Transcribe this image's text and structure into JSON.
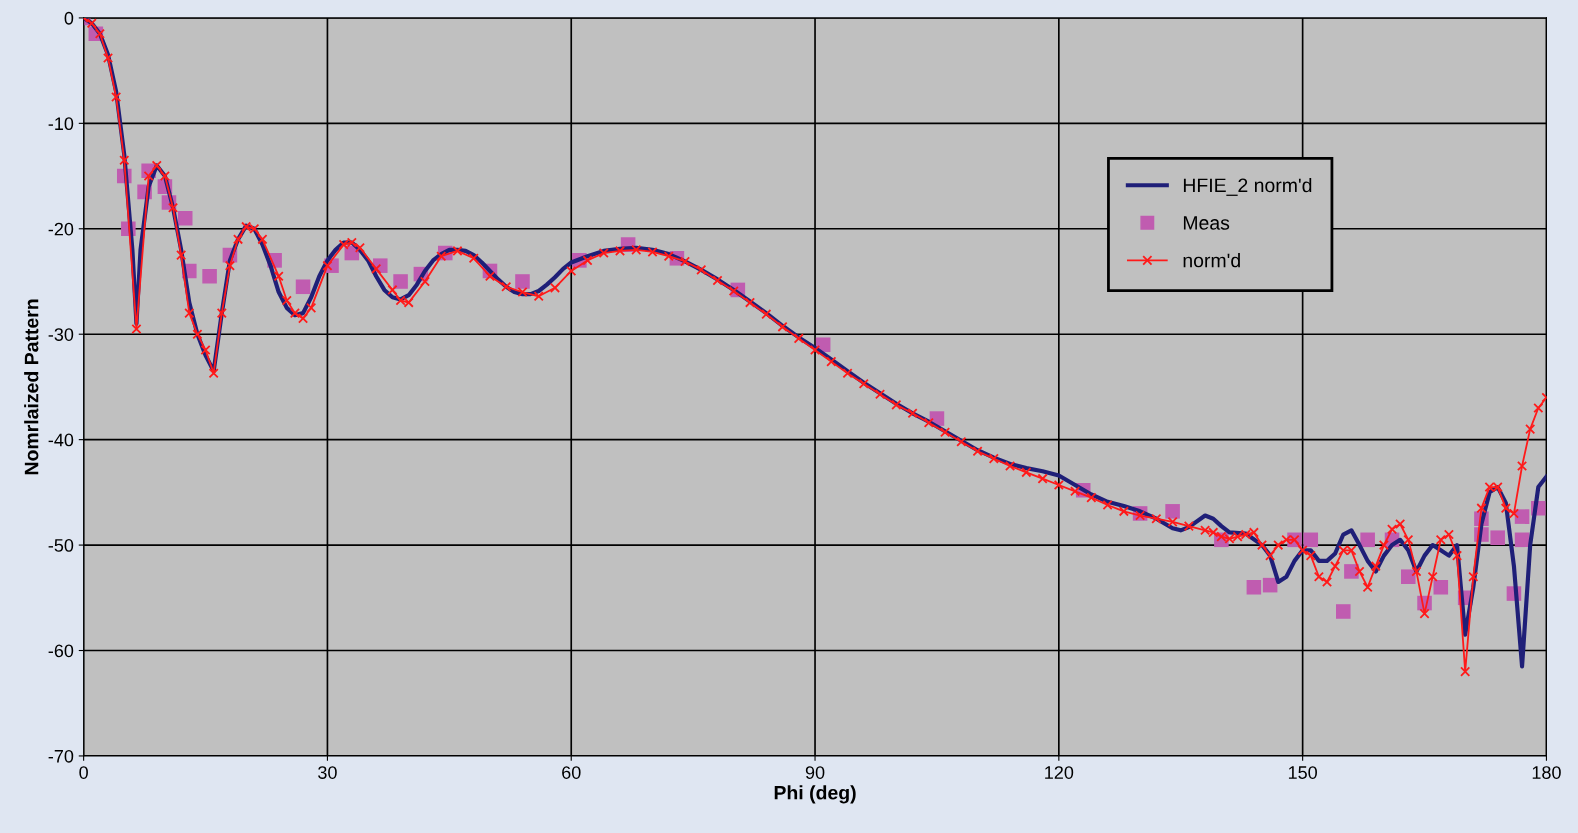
{
  "chart_data": {
    "type": "line",
    "xlabel": "Phi (deg)",
    "ylabel": "Nomrlaized Pattern",
    "xlim": [
      0,
      180
    ],
    "ylim": [
      -70,
      0
    ],
    "xticks": [
      0,
      30,
      60,
      90,
      120,
      150,
      180
    ],
    "yticks": [
      -70,
      -60,
      -50,
      -40,
      -30,
      -20,
      -10,
      0
    ],
    "grid": true,
    "legend": "right",
    "series": [
      {
        "name": "HFIE_2 norm'd",
        "color": "#1f1f78",
        "marker": "none",
        "x": [
          0,
          1,
          2,
          3,
          4,
          5,
          6,
          6.5,
          7,
          8,
          9,
          10,
          11,
          12,
          13,
          14,
          15,
          16,
          17,
          18,
          19,
          20,
          21,
          22,
          23,
          24,
          25,
          26,
          27,
          28,
          29,
          30,
          31,
          32,
          33,
          34,
          35,
          36,
          37,
          38,
          39,
          40,
          41,
          42,
          43,
          44,
          45,
          46,
          47,
          48,
          49,
          50,
          51,
          52,
          53,
          54,
          55,
          56,
          57,
          58,
          59,
          60,
          62,
          64,
          66,
          68,
          70,
          72,
          74,
          76,
          78,
          80,
          82,
          84,
          86,
          88,
          90,
          92,
          94,
          96,
          98,
          100,
          102,
          104,
          106,
          108,
          110,
          112,
          114,
          116,
          118,
          120,
          122,
          124,
          126,
          128,
          130,
          132,
          134,
          135,
          136,
          138,
          139,
          140,
          141,
          143,
          145,
          146,
          147,
          148,
          149,
          150,
          151,
          152,
          153,
          154,
          155,
          156,
          157,
          158,
          159,
          160,
          161,
          162,
          163,
          164,
          165,
          166,
          167,
          168,
          169,
          170,
          171,
          172,
          173,
          174,
          175,
          176,
          177,
          178,
          179,
          180
        ],
        "values": [
          0,
          -0.5,
          -1.5,
          -3.5,
          -7,
          -13,
          -22,
          -29,
          -22,
          -16,
          -14,
          -15,
          -18,
          -22,
          -27,
          -30,
          -32,
          -33.5,
          -28,
          -23,
          -21,
          -19.7,
          -20,
          -21.5,
          -23.5,
          -26,
          -27.5,
          -28.2,
          -28,
          -26.5,
          -24.5,
          -23,
          -22,
          -21.3,
          -21.3,
          -22,
          -23,
          -24.5,
          -25.8,
          -26.5,
          -26.7,
          -26.3,
          -25.3,
          -24,
          -23,
          -22.4,
          -22,
          -22,
          -22.1,
          -22.5,
          -23.2,
          -24,
          -24.8,
          -25.5,
          -26,
          -26.2,
          -26.2,
          -25.9,
          -25.3,
          -24.6,
          -23.8,
          -23.2,
          -22.6,
          -22.1,
          -21.9,
          -21.8,
          -22,
          -22.4,
          -23.1,
          -23.9,
          -24.8,
          -25.8,
          -26.9,
          -28,
          -29.2,
          -30.3,
          -31.3,
          -32.4,
          -33.5,
          -34.6,
          -35.6,
          -36.6,
          -37.5,
          -38.3,
          -39.2,
          -40.1,
          -41,
          -41.7,
          -42.3,
          -42.7,
          -43,
          -43.4,
          -44.3,
          -45.2,
          -45.9,
          -46.3,
          -46.8,
          -47.5,
          -48.4,
          -48.6,
          -48.3,
          -47.2,
          -47.5,
          -48.2,
          -48.8,
          -48.9,
          -50,
          -51,
          -53.5,
          -53,
          -51.5,
          -50.5,
          -50.5,
          -51.5,
          -51.5,
          -50.8,
          -49,
          -48.6,
          -50,
          -51.5,
          -52.5,
          -51,
          -50,
          -49.5,
          -50.5,
          -52.5,
          -51,
          -50,
          -50.5,
          -51,
          -50,
          -58.5,
          -54,
          -48,
          -45,
          -44.5,
          -46,
          -52,
          -61.5,
          -50,
          -44.5,
          -43.5
        ]
      },
      {
        "name": "Meas",
        "type": "scatter",
        "color": "#c05cb0",
        "marker": "square",
        "x": [
          0,
          1.5,
          5,
          5.5,
          7.5,
          8,
          10,
          10.5,
          12.5,
          13,
          15.5,
          18,
          23.5,
          27,
          30.5,
          33,
          36.5,
          39,
          41.5,
          44.5,
          50,
          54,
          61,
          67,
          73,
          80.5,
          91,
          105,
          123,
          130,
          134,
          140,
          144,
          146,
          149,
          151,
          155,
          156,
          158,
          161,
          163,
          165,
          167,
          170,
          172,
          172,
          174,
          176,
          177,
          177,
          179
        ],
        "values": [
          0,
          -1.5,
          -15,
          -20,
          -16.5,
          -14.5,
          -16,
          -17.5,
          -19,
          -24,
          -24.5,
          -22.5,
          -23,
          -25.5,
          -23.5,
          -22.3,
          -23.5,
          -25,
          -24.3,
          -22.3,
          -24,
          -25,
          -23,
          -21.5,
          -22.8,
          -25.8,
          -31,
          -38,
          -44.8,
          -47,
          -46.8,
          -49.5,
          -54,
          -53.8,
          -49.5,
          -49.5,
          -56.3,
          -52.5,
          -49.5,
          -49.5,
          -53,
          -55.5,
          -54,
          -55,
          -47.5,
          -49,
          -49.3,
          -54.6,
          -47.3,
          -49.5,
          -46.5
        ]
      },
      {
        "name": "norm'd",
        "color": "#ff1a1a",
        "marker": "cross",
        "x": [
          0,
          1,
          2,
          3,
          4,
          5,
          6.5,
          8,
          9,
          10,
          11,
          12,
          13,
          14,
          15,
          16,
          17,
          18,
          19,
          20,
          21,
          22,
          24,
          25,
          26,
          27,
          28,
          30,
          32,
          33,
          34,
          36,
          38,
          39,
          40,
          42,
          44,
          46,
          48,
          50,
          52,
          54,
          56,
          58,
          60,
          62,
          64,
          66,
          68,
          70,
          72,
          74,
          76,
          78,
          80,
          82,
          84,
          86,
          88,
          90,
          92,
          94,
          96,
          98,
          100,
          102,
          104,
          106,
          108,
          110,
          112,
          114,
          116,
          118,
          120,
          122,
          124,
          126,
          128,
          130,
          132,
          134,
          136,
          138,
          139,
          140,
          141,
          142,
          143,
          144,
          145,
          146,
          147,
          148,
          149,
          150,
          151,
          152,
          153,
          154,
          155,
          156,
          157,
          158,
          159,
          160,
          161,
          162,
          163,
          164,
          165,
          166,
          167,
          168,
          169,
          170,
          171,
          172,
          173,
          174,
          175,
          176,
          177,
          178,
          179,
          180
        ],
        "values": [
          0,
          -0.5,
          -1.5,
          -3.8,
          -7.5,
          -13.5,
          -29.5,
          -15,
          -14,
          -15,
          -18,
          -22.5,
          -28,
          -30,
          -31.5,
          -33.7,
          -28,
          -23.5,
          -21,
          -19.8,
          -20,
          -21,
          -24.5,
          -26.8,
          -28,
          -28.5,
          -27.5,
          -23.5,
          -21.5,
          -21.3,
          -21.8,
          -23.8,
          -25.8,
          -26.8,
          -27,
          -25,
          -22.6,
          -22.1,
          -22.8,
          -24.5,
          -25.5,
          -26,
          -26.4,
          -25.6,
          -24,
          -23,
          -22.3,
          -22.1,
          -22,
          -22.2,
          -22.6,
          -23.1,
          -23.9,
          -24.9,
          -25.9,
          -27,
          -28.1,
          -29.3,
          -30.4,
          -31.5,
          -32.6,
          -33.7,
          -34.7,
          -35.7,
          -36.7,
          -37.5,
          -38.4,
          -39.3,
          -40.2,
          -41.1,
          -41.8,
          -42.5,
          -43.1,
          -43.7,
          -44.3,
          -44.9,
          -45.5,
          -46.2,
          -46.8,
          -47.2,
          -47.5,
          -47.8,
          -48.2,
          -48.6,
          -48.8,
          -49.2,
          -49.4,
          -49.2,
          -49,
          -48.8,
          -50,
          -51,
          -50,
          -49.5,
          -49.5,
          -50.5,
          -51,
          -53,
          -53.5,
          -52,
          -50.5,
          -50.5,
          -52.5,
          -54,
          -52,
          -50,
          -48.5,
          -48,
          -49.5,
          -52.5,
          -56.5,
          -53,
          -49.5,
          -49,
          -51,
          -62,
          -53,
          -46.5,
          -44.5,
          -44.5,
          -46.5,
          -47,
          -42.5,
          -39,
          -37,
          -36
        ]
      }
    ]
  }
}
